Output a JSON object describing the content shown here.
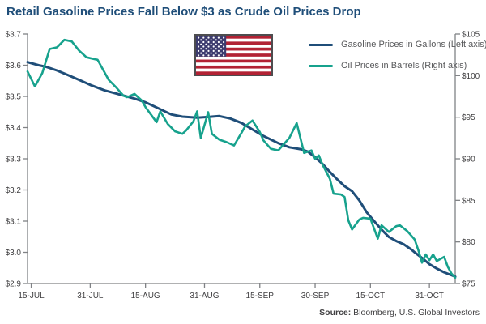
{
  "title": "Retail Gasoline Prices Fall Below $3 as Crude Oil Prices Drop",
  "source": {
    "label": "Source:",
    "text": "Bloomberg, U.S. Global Investors"
  },
  "legend": {
    "items": [
      {
        "label": "Gasoline Prices in Gallons (Left axis)",
        "color": "#1F4E79"
      },
      {
        "label": "Oil Prices in Barrels (Right axis)",
        "color": "#17A28D"
      }
    ]
  },
  "flag": {
    "red": "#B22234",
    "blue": "#3C3B6E",
    "white": "#FFFFFF"
  },
  "colors": {
    "title": "#1F4E79",
    "axis_line": "#808285",
    "tick_label": "#414042",
    "gasoline_line": "#1F4E79",
    "oil_line": "#17A28D"
  },
  "chart_data": {
    "type": "line",
    "title": "Retail Gasoline Prices Fall Below $3 as Crude Oil Prices Drop",
    "x_tick_labels": [
      "15-JUL",
      "31-JUL",
      "15-AUG",
      "31-AUG",
      "15-SEP",
      "30-SEP",
      "15-OCT",
      "31-OCT"
    ],
    "x_tick_days": [
      1,
      17,
      32,
      48,
      63,
      78,
      93,
      109
    ],
    "x_domain": [
      0,
      116
    ],
    "grid": false,
    "legend_position": "top",
    "left_axis": {
      "title": "Gasoline Prices in Gallons",
      "tick_labels": [
        "$3.7",
        "$3.6",
        "$3.5",
        "$3.4",
        "$3.3",
        "$3.2",
        "$3.1",
        "$3.0",
        "$2.9"
      ],
      "tick_values": [
        3.7,
        3.6,
        3.5,
        3.4,
        3.3,
        3.2,
        3.1,
        3.0,
        2.9
      ],
      "range": [
        2.9,
        3.7
      ]
    },
    "right_axis": {
      "title": "Oil Prices in Barrels",
      "tick_labels": [
        "$105",
        "$100",
        "$95",
        "$90",
        "$85",
        "$80",
        "$75"
      ],
      "tick_values": [
        105,
        100,
        95,
        90,
        85,
        80,
        75
      ],
      "range": [
        75,
        105
      ]
    },
    "series": [
      {
        "name": "Gasoline Prices in Gallons (Left axis)",
        "axis": "left",
        "color": "#1F4E79",
        "stroke_width": 3,
        "points": [
          [
            0,
            3.61
          ],
          [
            3,
            3.6
          ],
          [
            5,
            3.595
          ],
          [
            8,
            3.583
          ],
          [
            11,
            3.568
          ],
          [
            14,
            3.553
          ],
          [
            17,
            3.537
          ],
          [
            21,
            3.519
          ],
          [
            25,
            3.506
          ],
          [
            29,
            3.493
          ],
          [
            32,
            3.481
          ],
          [
            36,
            3.459
          ],
          [
            39,
            3.442
          ],
          [
            42,
            3.435
          ],
          [
            46,
            3.432
          ],
          [
            49,
            3.434
          ],
          [
            52,
            3.437
          ],
          [
            55,
            3.429
          ],
          [
            58,
            3.415
          ],
          [
            61,
            3.394
          ],
          [
            64,
            3.373
          ],
          [
            68,
            3.35
          ],
          [
            71,
            3.337
          ],
          [
            74,
            3.331
          ],
          [
            76,
            3.323
          ],
          [
            78,
            3.305
          ],
          [
            80,
            3.284
          ],
          [
            82,
            3.258
          ],
          [
            84,
            3.234
          ],
          [
            86,
            3.212
          ],
          [
            88,
            3.196
          ],
          [
            90,
            3.166
          ],
          [
            92,
            3.128
          ],
          [
            94,
            3.1
          ],
          [
            96,
            3.073
          ],
          [
            98,
            3.049
          ],
          [
            100,
            3.036
          ],
          [
            102,
            3.026
          ],
          [
            104,
            3.01
          ],
          [
            105,
            3.0
          ],
          [
            107,
            2.982
          ],
          [
            109,
            2.962
          ],
          [
            111,
            2.948
          ],
          [
            113,
            2.936
          ],
          [
            116,
            2.922
          ]
        ]
      },
      {
        "name": "Oil Prices in Barrels (Right axis)",
        "axis": "right",
        "color": "#17A28D",
        "stroke_width": 2.6,
        "points": [
          [
            0,
            100.5
          ],
          [
            2,
            98.7
          ],
          [
            4,
            100.3
          ],
          [
            6,
            103.2
          ],
          [
            8,
            103.4
          ],
          [
            10,
            104.3
          ],
          [
            12,
            104.1
          ],
          [
            14,
            103.0
          ],
          [
            16,
            102.2
          ],
          [
            18,
            102.0
          ],
          [
            19,
            101.9
          ],
          [
            21,
            100.3
          ],
          [
            22,
            99.5
          ],
          [
            24,
            98.6
          ],
          [
            26,
            97.6
          ],
          [
            27,
            97.4
          ],
          [
            29,
            97.8
          ],
          [
            31,
            97.0
          ],
          [
            32,
            96.2
          ],
          [
            35,
            94.4
          ],
          [
            36,
            95.7
          ],
          [
            38,
            94.2
          ],
          [
            40,
            93.3
          ],
          [
            42,
            93.0
          ],
          [
            43,
            93.4
          ],
          [
            45,
            94.5
          ],
          [
            46,
            95.7
          ],
          [
            47,
            92.5
          ],
          [
            49,
            95.6
          ],
          [
            50,
            93.0
          ],
          [
            52,
            92.3
          ],
          [
            54,
            92.0
          ],
          [
            56,
            91.6
          ],
          [
            58,
            93.1
          ],
          [
            59,
            93.9
          ],
          [
            61,
            94.6
          ],
          [
            63,
            93.2
          ],
          [
            64,
            92.2
          ],
          [
            66,
            91.2
          ],
          [
            68,
            91.0
          ],
          [
            71,
            92.5
          ],
          [
            73,
            94.3
          ],
          [
            75,
            90.7
          ],
          [
            77,
            91.0
          ],
          [
            78,
            90.0
          ],
          [
            79,
            90.4
          ],
          [
            80,
            89.3
          ],
          [
            82,
            87.6
          ],
          [
            83,
            85.8
          ],
          [
            85,
            85.7
          ],
          [
            86,
            85.4
          ],
          [
            87,
            82.6
          ],
          [
            88,
            81.5
          ],
          [
            90,
            82.7
          ],
          [
            91,
            82.9
          ],
          [
            93,
            82.8
          ],
          [
            95,
            80.4
          ],
          [
            96,
            82.0
          ],
          [
            98,
            81.2
          ],
          [
            100,
            81.9
          ],
          [
            101,
            82.0
          ],
          [
            103,
            81.3
          ],
          [
            105,
            80.3
          ],
          [
            106,
            79.0
          ],
          [
            107,
            77.5
          ],
          [
            108,
            78.5
          ],
          [
            109,
            77.8
          ],
          [
            110,
            78.5
          ],
          [
            111,
            77.7
          ],
          [
            113,
            78.2
          ],
          [
            114,
            77.0
          ],
          [
            115,
            76.2
          ],
          [
            116,
            75.7
          ]
        ]
      }
    ]
  }
}
